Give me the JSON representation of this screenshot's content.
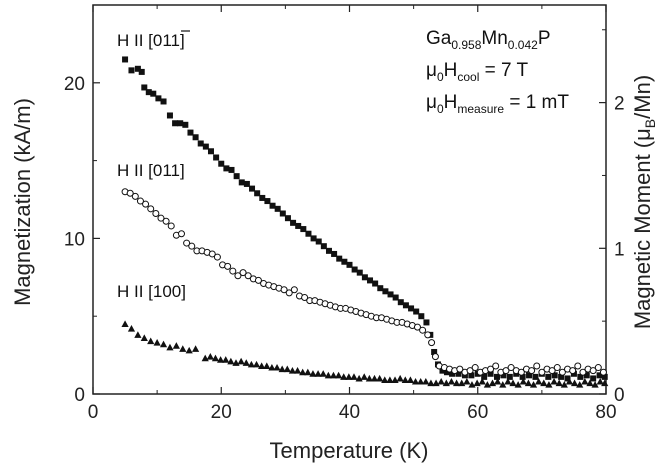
{
  "chart_data": {
    "type": "scatter",
    "xlabel": "Temperature (K)",
    "ylabel": "Magnetization (kA/m)",
    "y2label": "Magnetic Moment (μB/Mn)",
    "xlim": [
      0,
      80
    ],
    "ylim": [
      0,
      25
    ],
    "y2lim": [
      0,
      2.67
    ],
    "x_ticks": [
      0,
      20,
      40,
      60,
      80
    ],
    "y_ticks": [
      0,
      10,
      20
    ],
    "y2_ticks": [
      0,
      1,
      2
    ],
    "grid": false,
    "legend": "none",
    "annotations": {
      "sample_base1": "Ga",
      "sample_sub1": "0.958",
      "sample_base2": "Mn",
      "sample_sub2": "0.042",
      "sample_base3": "P",
      "cool_prefix": "μ",
      "cool_sub0": "0",
      "cool_h": "H",
      "cool_sub": "cool",
      "cool_value": " = 7 T",
      "meas_prefix": "μ",
      "meas_sub0": "0",
      "meas_h": "H",
      "meas_sub": "measure",
      "meas_value": " = 1 mT"
    },
    "series": [
      {
        "name": "H II [01̄1]",
        "name_base": "H II [01",
        "name_bar": "1",
        "name_end": "]",
        "marker": "square-filled",
        "points": [
          [
            5,
            21.5
          ],
          [
            6,
            20.8
          ],
          [
            7,
            20.9
          ],
          [
            7.6,
            20.7
          ],
          [
            8,
            19.7
          ],
          [
            8.7,
            19.4
          ],
          [
            9.4,
            19.3
          ],
          [
            10.2,
            19.0
          ],
          [
            11,
            18.8
          ],
          [
            12,
            17.9
          ],
          [
            12.8,
            17.4
          ],
          [
            13.6,
            17.4
          ],
          [
            14.4,
            17.3
          ],
          [
            15.2,
            16.8
          ],
          [
            16,
            16.5
          ],
          [
            16.8,
            16.1
          ],
          [
            17.6,
            15.9
          ],
          [
            18.4,
            15.6
          ],
          [
            19.2,
            15.2
          ],
          [
            20,
            14.8
          ],
          [
            20.8,
            14.5
          ],
          [
            21.6,
            14.4
          ],
          [
            22.4,
            14.0
          ],
          [
            23.2,
            13.6
          ],
          [
            24,
            13.5
          ],
          [
            24.8,
            13.2
          ],
          [
            25.6,
            12.9
          ],
          [
            26.4,
            12.6
          ],
          [
            27.2,
            12.4
          ],
          [
            28,
            12.1
          ],
          [
            28.8,
            11.9
          ],
          [
            29.6,
            11.6
          ],
          [
            30.4,
            11.3
          ],
          [
            31.2,
            11.0
          ],
          [
            32,
            10.8
          ],
          [
            32.8,
            10.6
          ],
          [
            33.6,
            10.3
          ],
          [
            34.4,
            10.0
          ],
          [
            35.2,
            9.8
          ],
          [
            36,
            9.5
          ],
          [
            36.8,
            9.2
          ],
          [
            37.6,
            9.0
          ],
          [
            38.4,
            8.7
          ],
          [
            39.2,
            8.5
          ],
          [
            40,
            8.3
          ],
          [
            40.8,
            8.0
          ],
          [
            41.6,
            7.8
          ],
          [
            42.4,
            7.5
          ],
          [
            43.2,
            7.3
          ],
          [
            44,
            7.1
          ],
          [
            44.8,
            6.8
          ],
          [
            45.6,
            6.6
          ],
          [
            46.4,
            6.4
          ],
          [
            47.2,
            6.2
          ],
          [
            48,
            5.9
          ],
          [
            48.8,
            5.7
          ],
          [
            49.6,
            5.5
          ],
          [
            50.4,
            5.3
          ],
          [
            51.2,
            5.0
          ],
          [
            52,
            4.6
          ],
          [
            52.6,
            3.8
          ],
          [
            53.2,
            2.7
          ],
          [
            53.8,
            1.9
          ],
          [
            54.5,
            1.5
          ],
          [
            55.2,
            1.4
          ],
          [
            56,
            1.3
          ],
          [
            57,
            1.3
          ],
          [
            58,
            1.2
          ],
          [
            59,
            1.2
          ],
          [
            60,
            1.3
          ],
          [
            61,
            1.1
          ],
          [
            62,
            1.3
          ],
          [
            63,
            1.1
          ],
          [
            64,
            1.2
          ],
          [
            65,
            1.1
          ],
          [
            66,
            1.3
          ],
          [
            67,
            1.1
          ],
          [
            68,
            1.2
          ],
          [
            69,
            1.1
          ],
          [
            70,
            1.3
          ],
          [
            71,
            1.1
          ],
          [
            72,
            1.2
          ],
          [
            73,
            1.1
          ],
          [
            74,
            1.0
          ],
          [
            75,
            1.3
          ],
          [
            76,
            1.1
          ],
          [
            77,
            1.2
          ],
          [
            78,
            1.0
          ],
          [
            79,
            1.2
          ],
          [
            79.8,
            1.1
          ]
        ]
      },
      {
        "name": "H II [011]",
        "marker": "circle-open",
        "points": [
          [
            5,
            13.0
          ],
          [
            5.8,
            12.9
          ],
          [
            6.6,
            12.7
          ],
          [
            7.4,
            12.4
          ],
          [
            8.2,
            12.2
          ],
          [
            9,
            11.9
          ],
          [
            9.8,
            11.6
          ],
          [
            10.6,
            11.3
          ],
          [
            11.4,
            11.1
          ],
          [
            12.2,
            10.8
          ],
          [
            13,
            10.2
          ],
          [
            13.8,
            10.3
          ],
          [
            14.6,
            9.7
          ],
          [
            15.4,
            9.5
          ],
          [
            16.2,
            9.2
          ],
          [
            17,
            9.2
          ],
          [
            17.8,
            9.1
          ],
          [
            18.6,
            9.0
          ],
          [
            19.4,
            8.8
          ],
          [
            20.2,
            8.3
          ],
          [
            21,
            8.2
          ],
          [
            21.8,
            7.9
          ],
          [
            22.6,
            7.6
          ],
          [
            23.4,
            7.8
          ],
          [
            24.2,
            7.6
          ],
          [
            25,
            7.4
          ],
          [
            25.8,
            7.3
          ],
          [
            26.6,
            7.1
          ],
          [
            27.4,
            7.0
          ],
          [
            28.2,
            6.9
          ],
          [
            29,
            6.8
          ],
          [
            29.8,
            6.7
          ],
          [
            30.6,
            6.5
          ],
          [
            31.4,
            6.7
          ],
          [
            32.2,
            6.3
          ],
          [
            33,
            6.2
          ],
          [
            33.8,
            6.0
          ],
          [
            34.6,
            6.0
          ],
          [
            35.4,
            5.9
          ],
          [
            36.2,
            5.8
          ],
          [
            37,
            5.7
          ],
          [
            37.8,
            5.6
          ],
          [
            38.6,
            5.5
          ],
          [
            39.4,
            5.5
          ],
          [
            40.2,
            5.4
          ],
          [
            41,
            5.3
          ],
          [
            41.8,
            5.2
          ],
          [
            42.6,
            5.1
          ],
          [
            43.4,
            5.0
          ],
          [
            44.2,
            4.9
          ],
          [
            45,
            4.9
          ],
          [
            45.8,
            4.8
          ],
          [
            46.6,
            4.7
          ],
          [
            47.4,
            4.6
          ],
          [
            48.2,
            4.6
          ],
          [
            49,
            4.5
          ],
          [
            49.8,
            4.4
          ],
          [
            50.6,
            4.3
          ],
          [
            51.4,
            4.1
          ],
          [
            52.2,
            3.8
          ],
          [
            52.8,
            3.3
          ],
          [
            53.4,
            2.4
          ],
          [
            54,
            1.8
          ],
          [
            54.8,
            1.7
          ],
          [
            55.6,
            1.6
          ],
          [
            56.4,
            1.5
          ],
          [
            57.2,
            1.6
          ],
          [
            58,
            1.4
          ],
          [
            58.8,
            1.5
          ],
          [
            59.6,
            1.7
          ],
          [
            60.4,
            1.4
          ],
          [
            61.2,
            1.5
          ],
          [
            62,
            1.6
          ],
          [
            62.8,
            1.8
          ],
          [
            63.6,
            1.4
          ],
          [
            64.4,
            1.5
          ],
          [
            65.2,
            1.7
          ],
          [
            66,
            1.5
          ],
          [
            66.8,
            1.4
          ],
          [
            67.6,
            1.6
          ],
          [
            68.4,
            1.5
          ],
          [
            69.2,
            1.8
          ],
          [
            70,
            1.4
          ],
          [
            70.8,
            1.6
          ],
          [
            71.6,
            1.5
          ],
          [
            72.4,
            1.7
          ],
          [
            73.2,
            1.4
          ],
          [
            74,
            1.6
          ],
          [
            74.8,
            1.5
          ],
          [
            75.6,
            1.8
          ],
          [
            76.4,
            1.4
          ],
          [
            77.2,
            1.6
          ],
          [
            78,
            1.5
          ],
          [
            78.8,
            1.7
          ],
          [
            79.6,
            1.4
          ]
        ]
      },
      {
        "name": "H II [100]",
        "marker": "triangle-filled",
        "points": [
          [
            5,
            4.5
          ],
          [
            6,
            4.2
          ],
          [
            7,
            3.8
          ],
          [
            8,
            3.6
          ],
          [
            9,
            3.4
          ],
          [
            10,
            3.3
          ],
          [
            11,
            3.2
          ],
          [
            12,
            3.0
          ],
          [
            13,
            3.1
          ],
          [
            14,
            2.9
          ],
          [
            15,
            2.8
          ],
          [
            16,
            2.9
          ],
          [
            17.5,
            2.3
          ],
          [
            18.3,
            2.4
          ],
          [
            19.1,
            2.3
          ],
          [
            19.9,
            2.2
          ],
          [
            20.7,
            2.2
          ],
          [
            21.5,
            2.1
          ],
          [
            22.3,
            2.0
          ],
          [
            23.1,
            2.1
          ],
          [
            23.9,
            2.0
          ],
          [
            24.7,
            1.9
          ],
          [
            25.5,
            1.9
          ],
          [
            26.3,
            1.8
          ],
          [
            27.1,
            1.8
          ],
          [
            27.9,
            1.7
          ],
          [
            28.7,
            1.7
          ],
          [
            29.5,
            1.6
          ],
          [
            30.3,
            1.6
          ],
          [
            31.1,
            1.5
          ],
          [
            31.9,
            1.5
          ],
          [
            32.7,
            1.4
          ],
          [
            33.5,
            1.4
          ],
          [
            34.3,
            1.3
          ],
          [
            35.1,
            1.3
          ],
          [
            35.9,
            1.3
          ],
          [
            36.7,
            1.2
          ],
          [
            37.5,
            1.2
          ],
          [
            38.3,
            1.2
          ],
          [
            39.1,
            1.1
          ],
          [
            39.9,
            1.1
          ],
          [
            40.7,
            1.1
          ],
          [
            41.5,
            1.0
          ],
          [
            42.3,
            1.1
          ],
          [
            43.1,
            1.0
          ],
          [
            43.9,
            1.0
          ],
          [
            44.7,
            1.0
          ],
          [
            45.5,
            0.9
          ],
          [
            46.3,
            0.9
          ],
          [
            47.1,
            0.9
          ],
          [
            47.9,
            1.0
          ],
          [
            48.7,
            0.9
          ],
          [
            49.5,
            0.9
          ],
          [
            50.3,
            0.8
          ],
          [
            51.1,
            0.8
          ],
          [
            51.9,
            0.8
          ],
          [
            52.7,
            0.7
          ],
          [
            53.5,
            0.7
          ],
          [
            54.3,
            0.8
          ],
          [
            55.1,
            0.7
          ],
          [
            55.9,
            0.8
          ],
          [
            56.7,
            0.7
          ],
          [
            57.5,
            0.7
          ],
          [
            58.3,
            0.8
          ],
          [
            59.1,
            0.6
          ],
          [
            59.9,
            0.7
          ],
          [
            60.7,
            0.8
          ],
          [
            61.5,
            0.6
          ],
          [
            62.3,
            0.7
          ],
          [
            63.1,
            0.8
          ],
          [
            63.9,
            0.6
          ],
          [
            64.7,
            0.8
          ],
          [
            65.5,
            0.7
          ],
          [
            66.3,
            0.6
          ],
          [
            67.1,
            0.8
          ],
          [
            67.9,
            0.7
          ],
          [
            68.7,
            0.6
          ],
          [
            69.5,
            0.8
          ],
          [
            70.3,
            0.7
          ],
          [
            71.1,
            0.6
          ],
          [
            71.9,
            0.8
          ],
          [
            72.7,
            0.7
          ],
          [
            73.5,
            0.6
          ],
          [
            74.3,
            0.8
          ],
          [
            75.1,
            0.7
          ],
          [
            75.9,
            0.6
          ],
          [
            76.7,
            0.8
          ],
          [
            77.5,
            0.7
          ],
          [
            78.3,
            0.6
          ],
          [
            79.1,
            0.8
          ],
          [
            79.8,
            0.7
          ]
        ]
      }
    ]
  }
}
